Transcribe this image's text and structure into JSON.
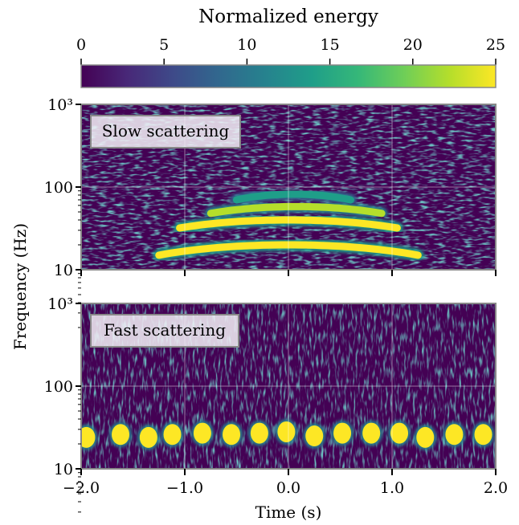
{
  "chart_data": {
    "type": "heatmap",
    "colorbar": {
      "title": "Normalized energy",
      "range": [
        0,
        25
      ],
      "ticks": [
        0,
        5,
        10,
        15,
        20,
        25
      ],
      "colormap": "viridis",
      "stops": [
        "#440154",
        "#482878",
        "#3e4a89",
        "#31688e",
        "#26828e",
        "#1f9e89",
        "#35b779",
        "#6ece58",
        "#b5de2b",
        "#fde725"
      ]
    },
    "x_axis": {
      "label": "Time (s)",
      "range": [
        -2.0,
        2.0
      ],
      "ticks": [
        -2.0,
        -1.0,
        0.0,
        1.0,
        2.0
      ],
      "tick_labels": [
        "−2.0",
        "−1.0",
        "0.0",
        "1.0",
        "2.0"
      ]
    },
    "y_axis": {
      "label": "Frequency (Hz)",
      "scale": "log",
      "range": [
        10,
        1000
      ],
      "ticks": [
        10,
        100,
        1000
      ],
      "tick_labels": [
        "10",
        "100",
        "10³"
      ]
    },
    "grid": true,
    "panels": [
      {
        "label": "Slow scattering",
        "arches": [
          {
            "t_start": -1.25,
            "t_end": 1.25,
            "f_edge": 15,
            "f_peak": 20,
            "intensity": 25
          },
          {
            "t_start": -1.05,
            "t_end": 1.05,
            "f_edge": 32,
            "f_peak": 40,
            "intensity": 25
          },
          {
            "t_start": -0.75,
            "t_end": 0.9,
            "f_edge": 48,
            "f_peak": 58,
            "intensity": 22
          },
          {
            "t_start": -0.5,
            "t_end": 0.6,
            "f_edge": 70,
            "f_peak": 82,
            "intensity": 14
          }
        ]
      },
      {
        "label": "Fast scattering",
        "blobs": [
          {
            "t": -1.95,
            "f": 24
          },
          {
            "t": -1.62,
            "f": 26
          },
          {
            "t": -1.35,
            "f": 24
          },
          {
            "t": -1.12,
            "f": 26
          },
          {
            "t": -0.83,
            "f": 27
          },
          {
            "t": -0.55,
            "f": 26
          },
          {
            "t": -0.28,
            "f": 27
          },
          {
            "t": -0.02,
            "f": 28
          },
          {
            "t": 0.25,
            "f": 25
          },
          {
            "t": 0.52,
            "f": 27
          },
          {
            "t": 0.8,
            "f": 27
          },
          {
            "t": 1.07,
            "f": 27
          },
          {
            "t": 1.32,
            "f": 24
          },
          {
            "t": 1.6,
            "f": 26
          },
          {
            "t": 1.88,
            "f": 26
          }
        ]
      }
    ]
  }
}
